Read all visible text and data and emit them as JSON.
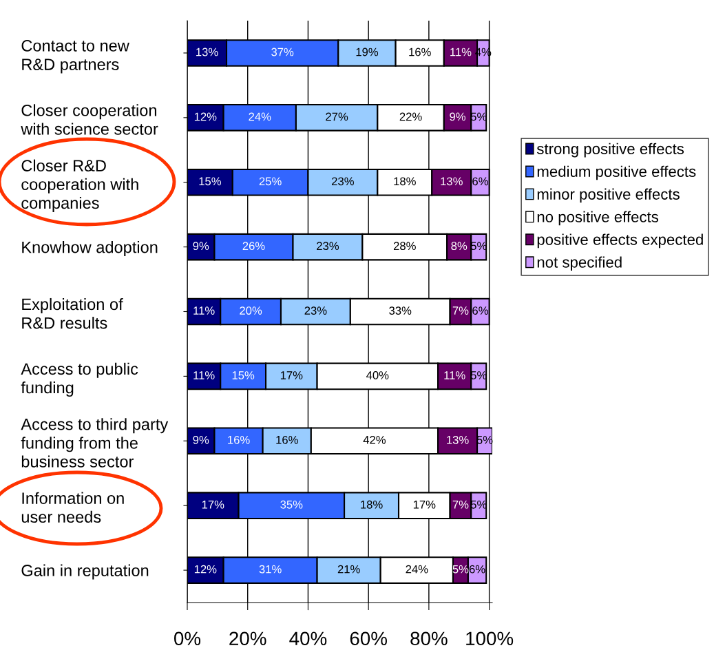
{
  "chart_data": {
    "type": "bar",
    "orientation": "horizontal",
    "stacked": true,
    "categories": [
      "Contact to new\nR&D partners",
      "Closer cooperation\nwith science sector",
      "Closer R&D\ncooperation with\ncompanies",
      "Knowhow adoption",
      "Exploitation of\nR&D results",
      "Access to public\nfunding",
      "Access to third party\nfunding from the\nbusiness sector",
      "Information on\nuser needs",
      "Gain in reputation"
    ],
    "series": [
      {
        "name": "strong positive effects",
        "color": "#000080",
        "values": [
          13,
          12,
          15,
          9,
          11,
          11,
          9,
          17,
          12
        ],
        "value_labels": [
          "13%",
          "12%",
          "15%",
          "9%",
          "11%",
          "11%",
          "9%",
          "17%",
          "12%"
        ]
      },
      {
        "name": "medium positive effects",
        "color": "#3366ff",
        "values": [
          37,
          24,
          25,
          26,
          20,
          15,
          16,
          35,
          31
        ],
        "value_labels": [
          "37%",
          "24%",
          "25%",
          "26%",
          "20%",
          "15%",
          "16%",
          "35%",
          "31%"
        ]
      },
      {
        "name": "minor positive effects",
        "color": "#99ccff",
        "values": [
          19,
          27,
          23,
          23,
          23,
          17,
          16,
          18,
          21
        ],
        "value_labels": [
          "19%",
          "27%",
          "23%",
          "23%",
          "23%",
          "17%",
          "16%",
          "18%",
          "21%"
        ]
      },
      {
        "name": "no positive effects",
        "color": "#ffffff",
        "values": [
          16,
          22,
          18,
          28,
          33,
          40,
          42,
          17,
          24
        ],
        "value_labels": [
          "16%",
          "22%",
          "18%",
          "28%",
          "33%",
          "40%",
          "42%",
          "17%",
          "24%"
        ]
      },
      {
        "name": "positive effects expected",
        "color": "#660066",
        "values": [
          11,
          9,
          13,
          8,
          7,
          11,
          13,
          7,
          5
        ],
        "value_labels": [
          "11%",
          "9%",
          "13%",
          "8%",
          "7%",
          "11%",
          "13%",
          "7%",
          "5%"
        ]
      },
      {
        "name": "not specified",
        "color": "#cc99ff",
        "values": [
          4,
          5,
          6,
          5,
          6,
          5,
          5,
          5,
          6
        ],
        "value_labels": [
          "4%",
          "5%",
          "6%",
          "5%",
          "6%",
          "5%",
          "5%",
          "5%",
          "6%"
        ]
      }
    ],
    "xlim": [
      0,
      101
    ],
    "xticks": [
      {
        "value": 0,
        "label": "0%"
      },
      {
        "value": 20,
        "label": "20%"
      },
      {
        "value": 40,
        "label": "40%"
      },
      {
        "value": 60,
        "label": "60%"
      },
      {
        "value": 80,
        "label": "80%"
      },
      {
        "value": 100,
        "label": "100%"
      }
    ],
    "grid": "x",
    "legend": "right"
  }
}
